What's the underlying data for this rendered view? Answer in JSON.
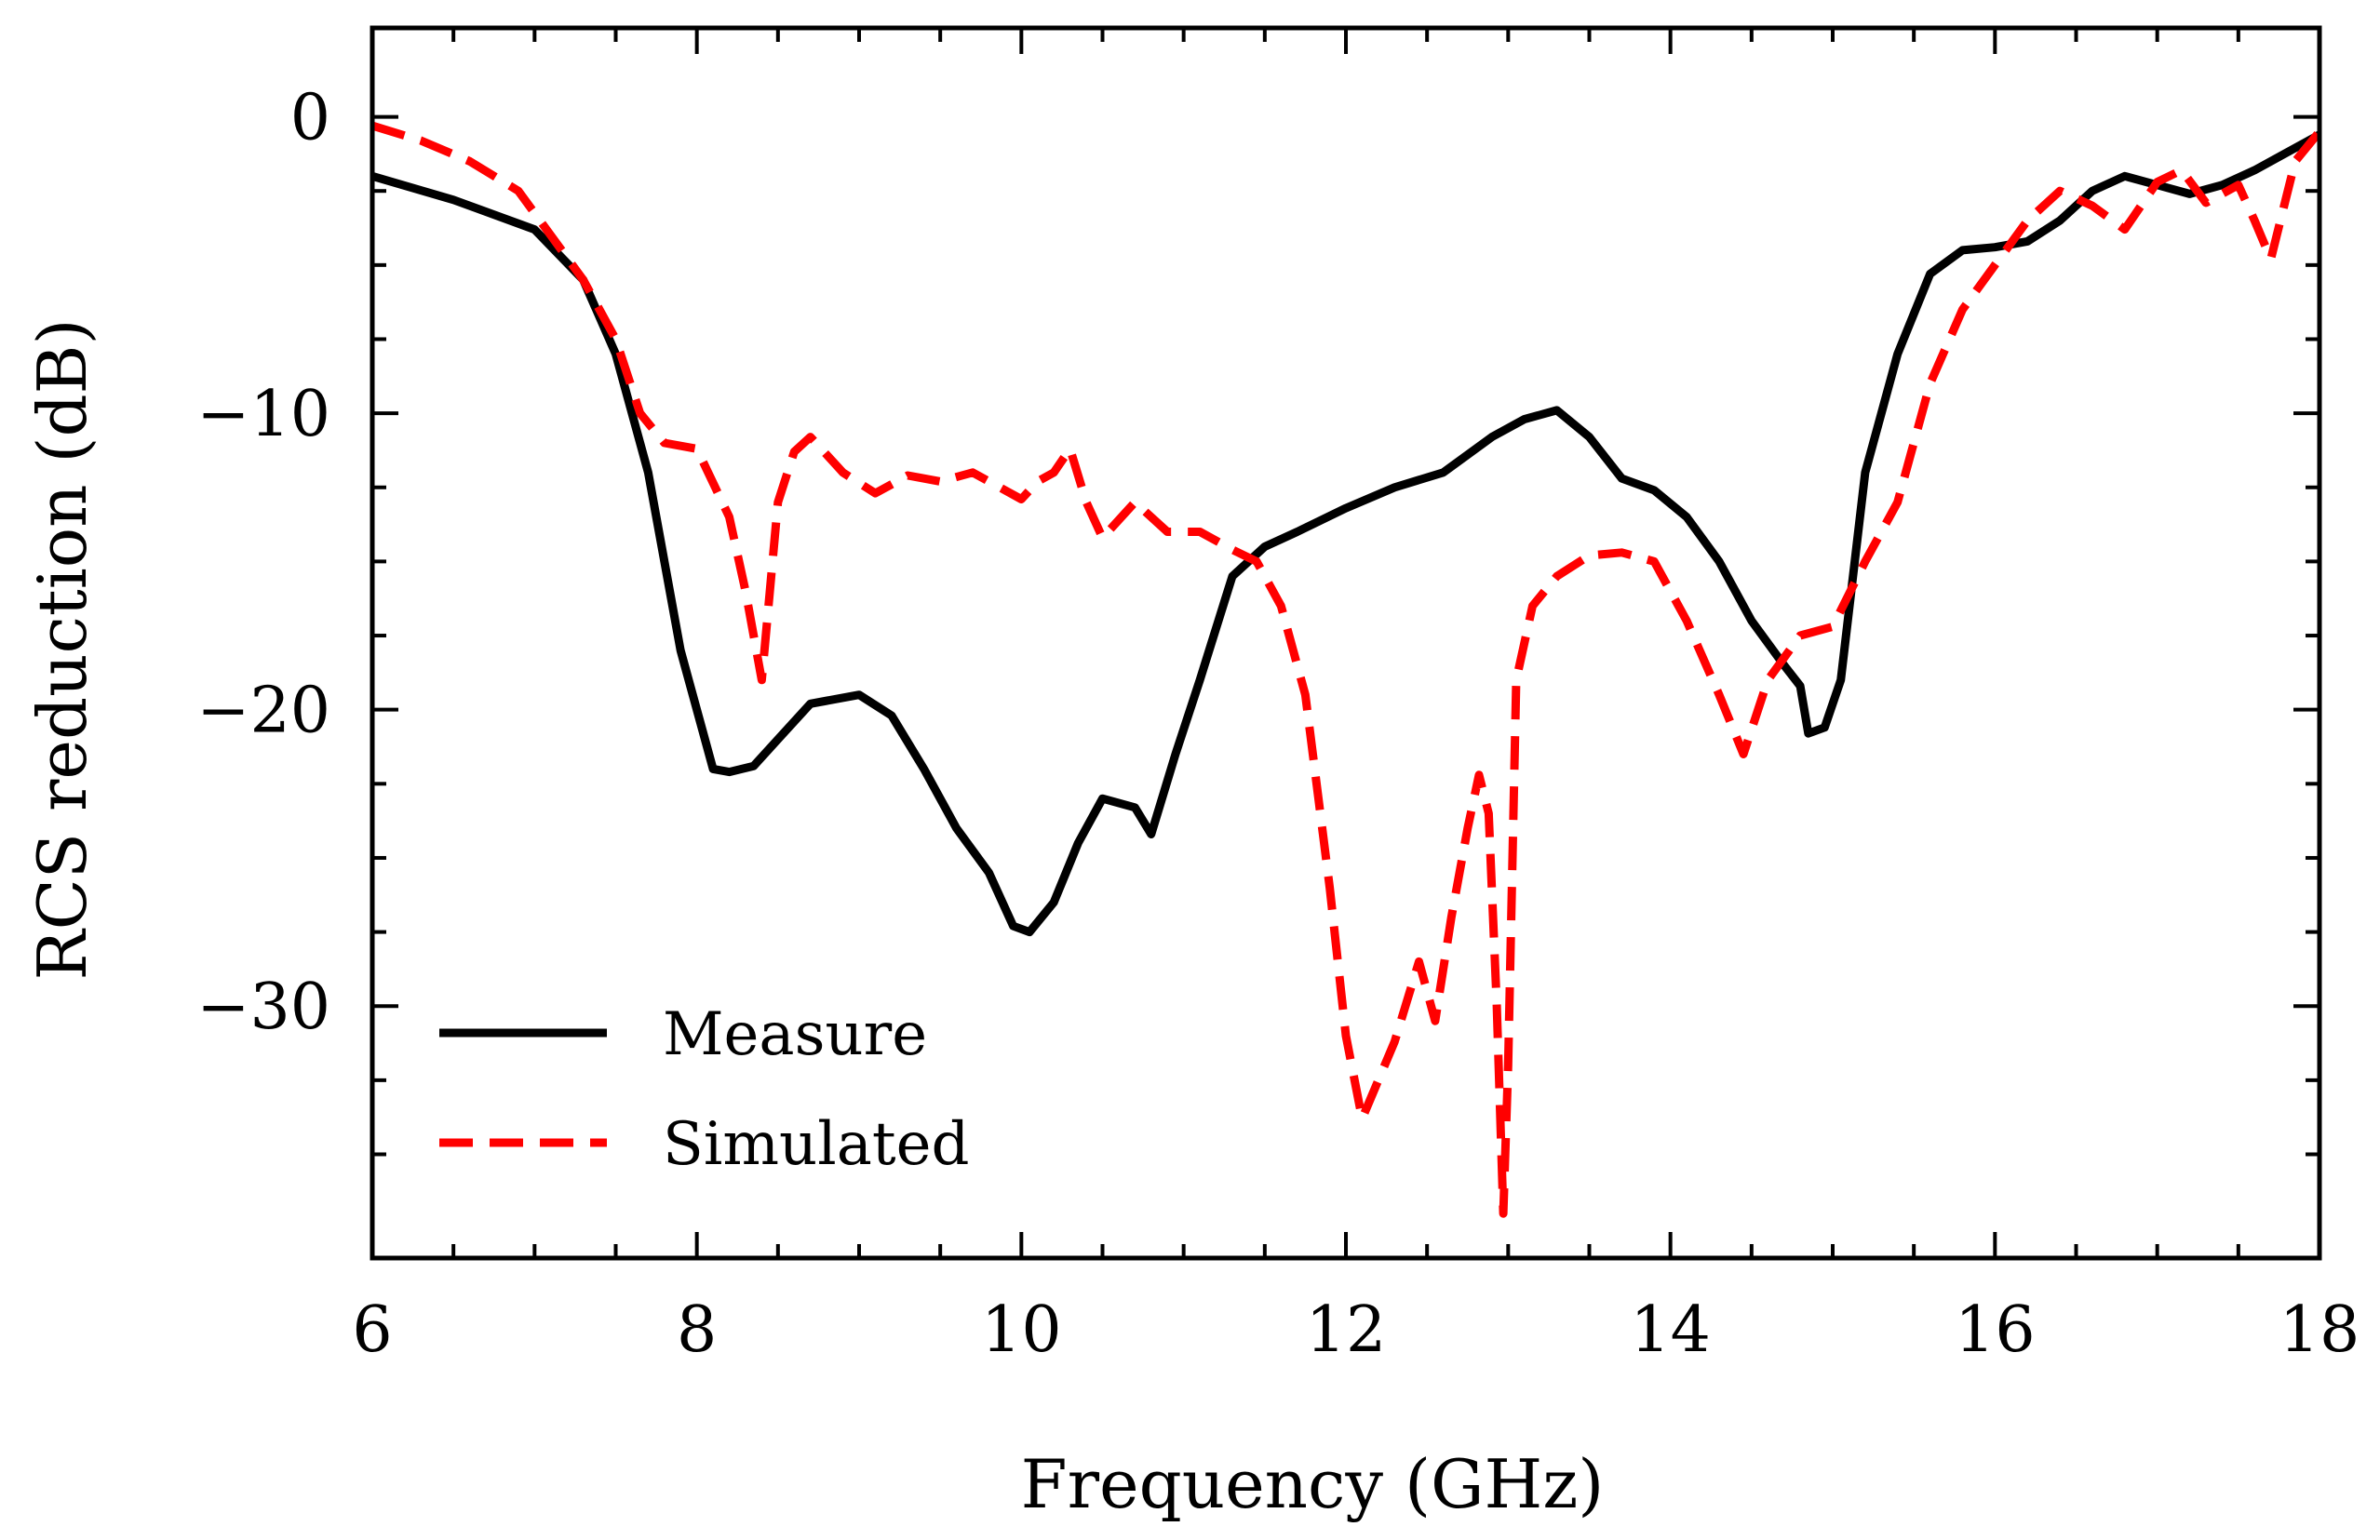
{
  "chart_data": {
    "type": "line",
    "title": "",
    "xlabel": "Frequency (GHz)",
    "ylabel": "RCS reduction (dB)",
    "xlim": [
      6,
      18
    ],
    "ylim": [
      -38.5,
      3
    ],
    "x_ticks": [
      6,
      8,
      10,
      12,
      14,
      16,
      18
    ],
    "x_tick_labels": [
      "6",
      "8",
      "10",
      "12",
      "14",
      "16",
      "18"
    ],
    "y_ticks": [
      0,
      -10,
      -20,
      -30
    ],
    "y_tick_labels": [
      "0",
      "−10",
      "−20",
      "−30"
    ],
    "grid": false,
    "legend_position": "lower-left",
    "series": [
      {
        "name": "Measure",
        "color": "#000000",
        "style": "solid",
        "x": [
          6.0,
          6.5,
          7.0,
          7.3,
          7.5,
          7.7,
          7.9,
          8.1,
          8.2,
          8.35,
          8.5,
          8.7,
          9.0,
          9.2,
          9.4,
          9.6,
          9.8,
          9.95,
          10.05,
          10.2,
          10.35,
          10.5,
          10.7,
          10.8,
          10.95,
          11.1,
          11.3,
          11.5,
          11.7,
          12.0,
          12.3,
          12.6,
          12.9,
          13.1,
          13.3,
          13.5,
          13.7,
          13.9,
          14.1,
          14.3,
          14.5,
          14.7,
          14.8,
          14.85,
          14.95,
          15.05,
          15.2,
          15.4,
          15.6,
          15.8,
          16.0,
          16.2,
          16.4,
          16.6,
          16.8,
          17.0,
          17.2,
          17.4,
          17.6,
          17.8,
          18.0
        ],
        "y": [
          -2.0,
          -2.8,
          -3.8,
          -5.5,
          -8.0,
          -12.0,
          -18.0,
          -22.0,
          -22.1,
          -21.9,
          -21.0,
          -19.8,
          -19.5,
          -20.2,
          -22.0,
          -24.0,
          -25.5,
          -27.3,
          -27.5,
          -26.5,
          -24.5,
          -23.0,
          -23.3,
          -24.2,
          -21.5,
          -19.0,
          -15.5,
          -14.5,
          -14.0,
          -13.2,
          -12.5,
          -12.0,
          -10.8,
          -10.2,
          -9.9,
          -10.8,
          -12.2,
          -12.6,
          -13.5,
          -15.0,
          -17.0,
          -18.5,
          -19.2,
          -20.8,
          -20.6,
          -19.0,
          -12.0,
          -8.0,
          -5.3,
          -4.5,
          -4.4,
          -4.2,
          -3.5,
          -2.5,
          -2.0,
          -2.3,
          -2.6,
          -2.3,
          -1.8,
          -1.2,
          -0.6
        ]
      },
      {
        "name": "Simulated",
        "color": "#ff0000",
        "style": "dashed",
        "x": [
          6.0,
          6.3,
          6.6,
          6.9,
          7.1,
          7.3,
          7.5,
          7.65,
          7.8,
          8.0,
          8.2,
          8.3,
          8.4,
          8.5,
          8.6,
          8.7,
          8.9,
          9.1,
          9.3,
          9.5,
          9.7,
          9.9,
          10.0,
          10.1,
          10.2,
          10.3,
          10.4,
          10.5,
          10.7,
          10.9,
          11.1,
          11.3,
          11.45,
          11.6,
          11.75,
          11.9,
          12.0,
          12.1,
          12.3,
          12.45,
          12.55,
          12.65,
          12.75,
          12.82,
          12.88,
          12.93,
          12.97,
          13.0,
          13.05,
          13.15,
          13.3,
          13.5,
          13.7,
          13.9,
          14.1,
          14.3,
          14.45,
          14.6,
          14.8,
          15.0,
          15.2,
          15.4,
          15.6,
          15.8,
          16.0,
          16.2,
          16.4,
          16.6,
          16.8,
          17.0,
          17.15,
          17.3,
          17.5,
          17.6,
          17.7,
          17.85,
          18.0
        ],
        "y": [
          -0.3,
          -0.8,
          -1.5,
          -2.5,
          -4.0,
          -5.5,
          -7.5,
          -10.0,
          -11.0,
          -11.2,
          -13.5,
          -16.0,
          -19.0,
          -13.0,
          -11.3,
          -10.8,
          -12.0,
          -12.7,
          -12.1,
          -12.3,
          -12.0,
          -12.6,
          -12.9,
          -12.3,
          -12.0,
          -11.2,
          -13.0,
          -14.2,
          -13.0,
          -14.0,
          -14.0,
          -14.6,
          -15.0,
          -16.5,
          -19.5,
          -26.0,
          -31.0,
          -33.8,
          -31.2,
          -28.5,
          -30.5,
          -27.0,
          -24.0,
          -22.2,
          -23.5,
          -30.0,
          -37.0,
          -32.0,
          -19.0,
          -16.5,
          -15.5,
          -14.8,
          -14.7,
          -15.0,
          -17.0,
          -19.5,
          -21.5,
          -19.0,
          -17.5,
          -17.2,
          -15.0,
          -13.0,
          -9.0,
          -6.5,
          -5.0,
          -3.5,
          -2.5,
          -3.0,
          -3.8,
          -2.2,
          -1.8,
          -2.9,
          -2.3,
          -3.5,
          -4.8,
          -1.5,
          -0.5
        ]
      }
    ]
  }
}
